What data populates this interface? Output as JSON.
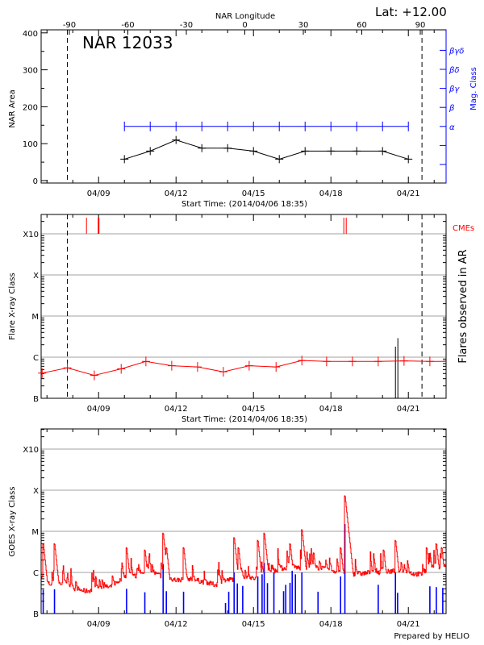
{
  "colors": {
    "area": "#000000",
    "mag": "#0000ff",
    "flare": "#ff0000",
    "cme": "#ff0000",
    "goes": "#ff0000",
    "goes_events": "#0000ff",
    "grid": "#a0a0a0",
    "limb_lines": "#000000"
  },
  "footer": "Prepared by HELIO",
  "start_time": "2014/04/06 18:35",
  "time_ticks": [
    "04/09",
    "04/12",
    "04/15",
    "04/18",
    "04/21"
  ],
  "chart_data": [
    {
      "type": "line",
      "title": "NAR 12033",
      "corner_label": "Lat: +12.00",
      "xlabel": "Start Time: (2014/04/06 18:35)",
      "top_xlabel": "NAR Longitude",
      "top_ticks": [
        -90,
        -60,
        -30,
        0,
        30,
        60,
        90
      ],
      "ylabel": "NAR Area",
      "ylabel_right": "Mag. Class",
      "yticks": [
        0,
        100,
        200,
        300,
        400
      ],
      "ylim": [
        0,
        400
      ],
      "mag_class_ticks": [
        "",
        "",
        "α",
        "β",
        "βγ",
        "βδ",
        "βγδ"
      ],
      "limb_crossings": [
        "2014-04-07 19:00",
        "2014-04-21 12:40"
      ],
      "series": [
        {
          "name": "NAR Area",
          "x": [
            "2014-04-10 00:00",
            "2014-04-11 00:00",
            "2014-04-12 00:00",
            "2014-04-13 00:00",
            "2014-04-14 00:00",
            "2014-04-15 00:00",
            "2014-04-16 00:00",
            "2014-04-17 00:00",
            "2014-04-18 00:00",
            "2014-04-19 00:00",
            "2014-04-20 00:00",
            "2014-04-21 00:00"
          ],
          "values": [
            58,
            80,
            110,
            88,
            88,
            80,
            58,
            80,
            80,
            80,
            80,
            58
          ]
        },
        {
          "name": "Mag. Class",
          "x": [
            "2014-04-10 00:00",
            "2014-04-11 00:00",
            "2014-04-12 00:00",
            "2014-04-13 00:00",
            "2014-04-14 00:00",
            "2014-04-15 00:00",
            "2014-04-16 00:00",
            "2014-04-17 00:00",
            "2014-04-18 00:00",
            "2014-04-19 00:00",
            "2014-04-20 00:00",
            "2014-04-21 00:00"
          ],
          "values": [
            "α",
            "α",
            "α",
            "α",
            "α",
            "α",
            "α",
            "α",
            "α",
            "α",
            "α",
            "α"
          ]
        }
      ]
    },
    {
      "type": "line",
      "xlabel": "Start Time: (2014/04/06 18:35)",
      "ylabel": "Flare X-ray Class",
      "ylabel_right": "Flares observed in AR",
      "cme_label": "CMEs",
      "yscale": "log",
      "ytick_labels": [
        "B",
        "C",
        "M",
        "X",
        "X10"
      ],
      "grid": true,
      "limb_crossings": [
        "2014-04-07 19:00",
        "2014-04-21 12:40"
      ],
      "series": [
        {
          "name": "background",
          "x": [
            "2014-04-06 19:30",
            "2014-04-07 19:00",
            "2014-04-08 20:00",
            "2014-04-09 21:00",
            "2014-04-10 20:00",
            "2014-04-11 20:00",
            "2014-04-12 20:00",
            "2014-04-13 20:00",
            "2014-04-14 20:00",
            "2014-04-15 21:00",
            "2014-04-16 21:00",
            "2014-04-17 20:00",
            "2014-04-18 20:00",
            "2014-04-19 20:00",
            "2014-04-20 20:00",
            "2014-04-21 20:00"
          ],
          "values": [
            "B4.1",
            "B5.5",
            "B3.6",
            "B5.2",
            "B7.9",
            "B6.2",
            "B5.8",
            "B4.4",
            "B6.2",
            "B5.8",
            "B8.3",
            "B7.9",
            "B7.9",
            "B7.9",
            "B8.1",
            "B7.9"
          ]
        }
      ],
      "flares": [
        {
          "time": "2014-04-20 12:00",
          "class": "C1.8"
        },
        {
          "time": "2014-04-20 14:15",
          "class": "C2.9"
        }
      ],
      "cmes": [
        {
          "time": "2014-04-08 12:45",
          "width": 1
        },
        {
          "time": "2014-04-09 00:00",
          "width": 2
        },
        {
          "time": "2014-04-18 12:00",
          "width": 1
        },
        {
          "time": "2014-04-18 14:15",
          "width": 1
        }
      ]
    },
    {
      "type": "line",
      "ylabel": "GOES X-ray Class",
      "yscale": "log",
      "ytick_labels": [
        "B",
        "C",
        "M",
        "X",
        "X10"
      ],
      "grid": true,
      "background": [
        [
          "2014-04-06 18:35",
          "B8.5"
        ],
        [
          "2014-04-07 00:00",
          "B5.0"
        ],
        [
          "2014-04-07 12:00",
          "B5.5"
        ],
        [
          "2014-04-08 00:00",
          "B4.0"
        ],
        [
          "2014-04-08 12:00",
          "B3.5"
        ],
        [
          "2014-04-09 00:00",
          "B4.0"
        ],
        [
          "2014-04-09 12:00",
          "B4.5"
        ],
        [
          "2014-04-10 00:00",
          "B8.0"
        ],
        [
          "2014-04-10 12:00",
          "B8.0"
        ],
        [
          "2014-04-11 00:00",
          "C1.0"
        ],
        [
          "2014-04-11 12:00",
          "B8.0"
        ],
        [
          "2014-04-12 00:00",
          "B6.5"
        ],
        [
          "2014-04-12 12:00",
          "B7.0"
        ],
        [
          "2014-04-13 00:00",
          "B6.0"
        ],
        [
          "2014-04-13 12:00",
          "B5.0"
        ],
        [
          "2014-04-14 00:00",
          "B6.5"
        ],
        [
          "2014-04-14 12:00",
          "B7.5"
        ],
        [
          "2014-04-15 00:00",
          "B7.0"
        ],
        [
          "2014-04-15 12:00",
          "B8.0"
        ],
        [
          "2014-04-16 00:00",
          "C1.2"
        ],
        [
          "2014-04-16 12:00",
          "C1.4"
        ],
        [
          "2014-04-17 00:00",
          "C1.2"
        ],
        [
          "2014-04-17 12:00",
          "C1.3"
        ],
        [
          "2014-04-18 00:00",
          "C1.1"
        ],
        [
          "2014-04-18 12:00",
          "C1.0"
        ],
        [
          "2014-04-19 00:00",
          "B9.0"
        ],
        [
          "2014-04-19 12:00",
          "C1.0"
        ],
        [
          "2014-04-20 00:00",
          "C1.0"
        ],
        [
          "2014-04-20 12:00",
          "C1.1"
        ],
        [
          "2014-04-21 00:00",
          "B9.5"
        ],
        [
          "2014-04-21 12:00",
          "B9.0"
        ],
        [
          "2014-04-22 00:00",
          "C1.3"
        ],
        [
          "2014-04-22 10:00",
          "C1.5"
        ]
      ],
      "peaks": [
        [
          "2014-04-06 20:30",
          "C5.0"
        ],
        [
          "2014-04-07 07:00",
          "C5.0"
        ],
        [
          "2014-04-10 02:00",
          "C4.0"
        ],
        [
          "2014-04-10 19:00",
          "C3.5"
        ],
        [
          "2014-04-11 12:00",
          "M0.9"
        ],
        [
          "2014-04-11 15:00",
          "C4.0"
        ],
        [
          "2014-04-12 07:00",
          "C4.0"
        ],
        [
          "2014-04-14 06:00",
          "M0.7"
        ],
        [
          "2014-04-14 10:00",
          "C4.0"
        ],
        [
          "2014-04-15 10:00",
          "M0.9"
        ],
        [
          "2014-04-15 04:00",
          "C6.0"
        ],
        [
          "2014-04-16 10:00",
          "C5.0"
        ],
        [
          "2014-04-16 21:00",
          "M1.1"
        ],
        [
          "2014-04-17 08:00",
          "C3.0"
        ],
        [
          "2014-04-18 13:00",
          "M7.3"
        ],
        [
          "2014-04-18 09:00",
          "C4.0"
        ],
        [
          "2014-04-20 01:00",
          "C3.5"
        ],
        [
          "2014-04-20 12:00",
          "M0.6"
        ],
        [
          "2014-04-21 17:00",
          "C4.0"
        ],
        [
          "2014-04-22 02:00",
          "C5.0"
        ],
        [
          "2014-04-22 07:00",
          "C4.0"
        ]
      ],
      "events": [
        [
          "2014-04-06 20:30",
          "B3.8"
        ],
        [
          "2014-04-07 07:00",
          "B3.9"
        ],
        [
          "2014-04-10 02:00",
          "B4.0"
        ],
        [
          "2014-04-10 19:00",
          "B3.3"
        ],
        [
          "2014-04-11 12:00",
          "C1.6"
        ],
        [
          "2014-04-11 15:00",
          "B3.5"
        ],
        [
          "2014-04-12 07:00",
          "B3.4"
        ],
        [
          "2014-04-13 22:00",
          "B1.8"
        ],
        [
          "2014-04-14 01:00",
          "B3.4"
        ],
        [
          "2014-04-14 06:00",
          "C1.0"
        ],
        [
          "2014-04-14 09:00",
          "B5.4"
        ],
        [
          "2014-04-14 14:00",
          "B4.7"
        ],
        [
          "2014-04-15 04:00",
          "B8.0"
        ],
        [
          "2014-04-15 08:00",
          "B9.0"
        ],
        [
          "2014-04-15 10:00",
          "C1.7"
        ],
        [
          "2014-04-15 13:00",
          "B5.5"
        ],
        [
          "2014-04-15 19:00",
          "C1.0"
        ],
        [
          "2014-04-16 04:00",
          "B3.5"
        ],
        [
          "2014-04-16 06:00",
          "B5.0"
        ],
        [
          "2014-04-16 10:00",
          "B5.6"
        ],
        [
          "2014-04-16 12:00",
          "C1.1"
        ],
        [
          "2014-04-16 15:00",
          "C0.9"
        ],
        [
          "2014-04-16 21:00",
          "C1.0"
        ],
        [
          "2014-04-17 12:00",
          "B3.4"
        ],
        [
          "2014-04-18 09:00",
          "B8.0"
        ],
        [
          "2014-04-18 13:00",
          "M1.5"
        ],
        [
          "2014-04-19 20:00",
          "B5.0"
        ],
        [
          "2014-04-20 12:00",
          "C1.0"
        ],
        [
          "2014-04-20 14:00",
          "B3.2"
        ],
        [
          "2014-04-21 20:00",
          "B4.6"
        ],
        [
          "2014-04-22 02:00",
          "B4.4"
        ],
        [
          "2014-04-22 08:00",
          "B4.2"
        ]
      ]
    }
  ]
}
